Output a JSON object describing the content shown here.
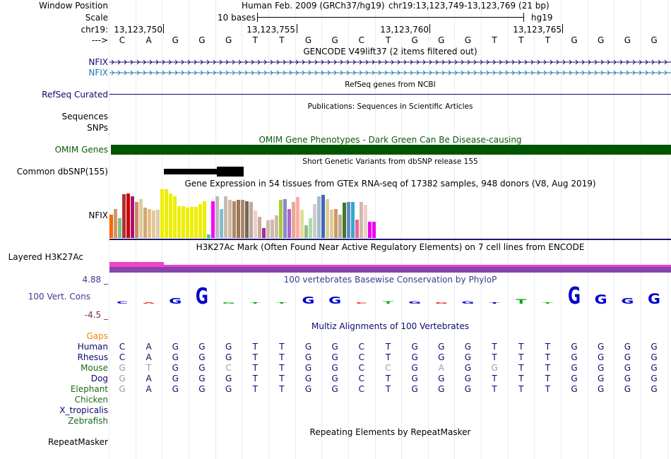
{
  "labels": {
    "window_position": "Window Position",
    "scale": "Scale",
    "chr": "chr19:",
    "strand": "--->",
    "nfix1": "NFIX",
    "nfix2": "NFIX",
    "refseq": "RefSeq Curated",
    "sequences": "Sequences",
    "snps": "SNPs",
    "omim": "OMIM Genes",
    "common_dbsnp": "Common dbSNP(155)",
    "nfix_gtex": "NFIX",
    "layered": "Layered H3K27Ac",
    "cons_max": "4.88 _",
    "cons_name": "100 Vert. Cons",
    "cons_min": "-4.5 _",
    "gaps": "Gaps",
    "repeatmasker": "RepeatMasker"
  },
  "ruler": {
    "assembly": "Human Feb. 2009 (GRCh37/hg19)",
    "position": "chr19:13,123,749-13,123,769 (21 bp)",
    "scale_text": "10 bases",
    "scale_db": "hg19",
    "ticks": [
      "13,123,750",
      "13,123,755",
      "13,123,760",
      "13,123,765"
    ]
  },
  "sequence": [
    "C",
    "A",
    "G",
    "G",
    "G",
    "T",
    "T",
    "G",
    "G",
    "C",
    "T",
    "G",
    "G",
    "G",
    "T",
    "T",
    "T",
    "G",
    "G",
    "G",
    "G"
  ],
  "track_titles": {
    "gencode": "GENCODE V49lift37 (2 items filtered out)",
    "refseq": "RefSeq genes from NCBI",
    "publications": "Publications: Sequences in Scientific Articles",
    "omim": "OMIM Gene Phenotypes - Dark Green Can Be Disease-causing",
    "dbsnp": "Short Genetic Variants from dbSNP release 155",
    "gtex": "Gene Expression in 54 tissues from GTEx RNA-seq of 17382 samples, 948 donors (V8, Aug 2019)",
    "h3k27ac": "H3K27Ac Mark (Often Found Near Active Regulatory Elements) on 7 cell lines from ENCODE",
    "phylop": "100 vertebrates Basewise Conservation by PhyloP",
    "multiz": "Multiz Alignments of 100 Vertebrates",
    "repeatmasker": "Repeating Elements by RepeatMasker"
  },
  "gtex": {
    "values": [
      48,
      60,
      40,
      90,
      92,
      85,
      74,
      80,
      62,
      60,
      56,
      58,
      100,
      100,
      92,
      86,
      66,
      66,
      62,
      64,
      64,
      70,
      75,
      8,
      76,
      86,
      60,
      86,
      78,
      76,
      78,
      78,
      76,
      74,
      56,
      44,
      20,
      36,
      38,
      46,
      78,
      80,
      60,
      74,
      84,
      58,
      26,
      40,
      70,
      86,
      88,
      80,
      58,
      60,
      48,
      72,
      74,
      74,
      38,
      74,
      68,
      34,
      34
    ],
    "colors": [
      "#ff6600",
      "#cc9966",
      "#88bb88",
      "#aa3333",
      "#cc0000",
      "#aa1177",
      "#cc8866",
      "#ddcc99",
      "#ccaa77",
      "#eebb88",
      "#ddcc99",
      "#ddccaa",
      "#eeee00",
      "#eeee00",
      "#eeee00",
      "#eeee00",
      "#eeee00",
      "#eeee00",
      "#eeee00",
      "#eeee00",
      "#eeee00",
      "#eeee00",
      "#eeee00",
      "#33ccaa",
      "#ff00ff",
      "#bbbbbb",
      "#88bbcc",
      "#ccbbaa",
      "#ccbbaa",
      "#aa8866",
      "#997755",
      "#aa8866",
      "#776655",
      "#bbaa99",
      "#eecccc",
      "#ccaa99",
      "#993399",
      "#ccbbaa",
      "#ccbbaa",
      "#ccbbaa",
      "#aacc33",
      "#8888cc",
      "#aa66cc",
      "#eeaa88",
      "#ffaaaa",
      "#dddd99",
      "#99bb88",
      "#aaddaa",
      "#cccccc",
      "#aabbcc",
      "#4466bb",
      "#ddcc99",
      "#ddcc99",
      "#cc9966",
      "#bbaa99",
      "#447722",
      "#6688cc",
      "#33aacc",
      "#ee6699",
      "#ccbbaa",
      "#eecccc",
      "#ee00ee",
      "#ee00ee"
    ]
  },
  "phylop_colors": [
    "#0000cc",
    "#ee0000",
    "#0000cc",
    "#0000cc",
    "#00aa00",
    "#00aa00",
    "#00aa00",
    "#0000cc",
    "#0000cc",
    "#ee0000",
    "#00aa00",
    "#0000cc",
    "#ee0000",
    "#0000cc",
    "#0000cc",
    "#00aa00",
    "#00aa00",
    "#0000cc",
    "#0000cc",
    "#0000cc",
    "#0000cc"
  ],
  "species": [
    {
      "name": "Human",
      "color": "#0a0a70",
      "bases": [
        "C",
        "A",
        "G",
        "G",
        "G",
        "T",
        "T",
        "G",
        "G",
        "C",
        "T",
        "G",
        "G",
        "G",
        "T",
        "T",
        "T",
        "G",
        "G",
        "G",
        "G"
      ],
      "diff": []
    },
    {
      "name": "Rhesus",
      "color": "#0a0a70",
      "bases": [
        "C",
        "A",
        "G",
        "G",
        "G",
        "T",
        "T",
        "G",
        "G",
        "C",
        "T",
        "G",
        "G",
        "G",
        "T",
        "T",
        "T",
        "G",
        "G",
        "G",
        "G"
      ],
      "diff": []
    },
    {
      "name": "Mouse",
      "color": "#1a6a1a",
      "bases": [
        "G",
        "T",
        "G",
        "G",
        "C",
        "T",
        "T",
        "G",
        "G",
        "C",
        "C",
        "G",
        "A",
        "G",
        "G",
        "T",
        "T",
        "G",
        "G",
        "G",
        "G"
      ],
      "diff": [
        0,
        1,
        4,
        10,
        12,
        14
      ]
    },
    {
      "name": "Dog",
      "color": "#0a0a70",
      "bases": [
        "G",
        "A",
        "G",
        "G",
        "G",
        "T",
        "T",
        "G",
        "G",
        "C",
        "T",
        "G",
        "G",
        "G",
        "T",
        "T",
        "T",
        "G",
        "G",
        "G",
        "G"
      ],
      "diff": [
        0
      ]
    },
    {
      "name": "Elephant",
      "color": "#1a6a1a",
      "bases": [
        "G",
        "A",
        "G",
        "G",
        "G",
        "T",
        "T",
        "G",
        "G",
        "C",
        "T",
        "G",
        "G",
        "G",
        "T",
        "T",
        "T",
        "G",
        "G",
        "G",
        "G"
      ],
      "diff": [
        0
      ]
    },
    {
      "name": "Chicken",
      "color": "#1a6a1a",
      "bases": [],
      "diff": []
    },
    {
      "name": "X_tropicalis",
      "color": "#0a0a70",
      "bases": [],
      "diff": []
    },
    {
      "name": "Zebrafish",
      "color": "#1a6a1a",
      "bases": [],
      "diff": []
    }
  ]
}
